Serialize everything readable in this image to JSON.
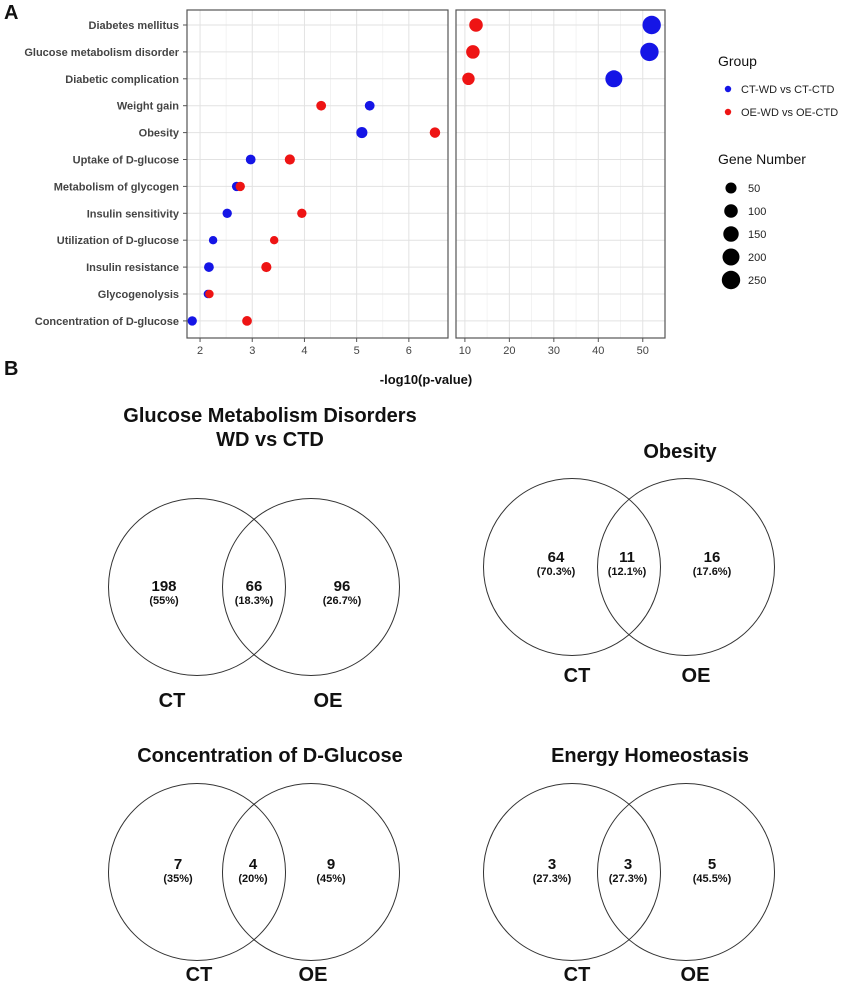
{
  "panel_labels": {
    "a": "A",
    "b": "B"
  },
  "chart_data": {
    "type": "scatter",
    "subtype": "dot-plot",
    "xlabel": "-log10(p-value)",
    "categories": [
      "Diabetes mellitus",
      "Glucose metabolism disorder",
      "Diabetic complication",
      "Weight gain",
      "Obesity",
      "Uptake of D-glucose",
      "Metabolism of glycogen",
      "Insulin sensitivity",
      "Utilization of D-glucose",
      "Insulin resistance",
      "Glycogenolysis",
      "Concentration of D-glucose"
    ],
    "facets": [
      {
        "xlim": [
          1.75,
          6.75
        ],
        "ticks": [
          "2",
          "3",
          "4",
          "5",
          "6"
        ],
        "tick_values": [
          2,
          3,
          4,
          5,
          6
        ]
      },
      {
        "xlim": [
          8,
          55
        ],
        "ticks": [
          "10",
          "20",
          "30",
          "40",
          "50"
        ],
        "tick_values": [
          10,
          20,
          30,
          40,
          50
        ]
      }
    ],
    "series": [
      {
        "name": "CT-WD vs CT-CTD",
        "color": "#1515e6",
        "points": [
          {
            "category": "Diabetes mellitus",
            "x": 52.0,
            "size": 250
          },
          {
            "category": "Glucose metabolism disorder",
            "x": 51.5,
            "size": 250
          },
          {
            "category": "Diabetic complication",
            "x": 43.5,
            "size": 200
          },
          {
            "category": "Weight gain",
            "x": 5.25,
            "size": 30
          },
          {
            "category": "Obesity",
            "x": 5.1,
            "size": 50
          },
          {
            "category": "Uptake of D-glucose",
            "x": 2.97,
            "size": 30
          },
          {
            "category": "Metabolism of glycogen",
            "x": 2.7,
            "size": 25
          },
          {
            "category": "Insulin sensitivity",
            "x": 2.52,
            "size": 25
          },
          {
            "category": "Utilization of D-glucose",
            "x": 2.25,
            "size": 15
          },
          {
            "category": "Insulin resistance",
            "x": 2.17,
            "size": 30
          },
          {
            "category": "Glycogenolysis",
            "x": 2.15,
            "size": 15
          },
          {
            "category": "Concentration of D-glucose",
            "x": 1.85,
            "size": 25
          }
        ]
      },
      {
        "name": "OE-WD vs OE-CTD",
        "color": "#ee1414",
        "points": [
          {
            "category": "Diabetes mellitus",
            "x": 12.5,
            "size": 100
          },
          {
            "category": "Glucose metabolism disorder",
            "x": 11.8,
            "size": 100
          },
          {
            "category": "Diabetic complication",
            "x": 10.8,
            "size": 75
          },
          {
            "category": "Weight gain",
            "x": 4.32,
            "size": 30
          },
          {
            "category": "Obesity",
            "x": 6.5,
            "size": 40
          },
          {
            "category": "Uptake of D-glucose",
            "x": 3.72,
            "size": 35
          },
          {
            "category": "Metabolism of glycogen",
            "x": 2.77,
            "size": 25
          },
          {
            "category": "Insulin sensitivity",
            "x": 3.95,
            "size": 25
          },
          {
            "category": "Utilization of D-glucose",
            "x": 3.42,
            "size": 15
          },
          {
            "category": "Insulin resistance",
            "x": 3.27,
            "size": 35
          },
          {
            "category": "Glycogenolysis",
            "x": 2.18,
            "size": 15
          },
          {
            "category": "Concentration of D-glucose",
            "x": 2.9,
            "size": 30
          }
        ]
      }
    ],
    "legend": {
      "group_title": "Group",
      "size_title": "Gene Number",
      "size_entries": [
        {
          "label": "50",
          "value": 50
        },
        {
          "label": "100",
          "value": 100
        },
        {
          "label": "150",
          "value": 150
        },
        {
          "label": "200",
          "value": 200
        },
        {
          "label": "250",
          "value": 250
        }
      ],
      "placement": "right"
    }
  },
  "venns": [
    {
      "title_line1": "Glucose Metabolism Disorders",
      "title_line2": "WD vs CTD",
      "left_label": "CT",
      "right_label": "OE",
      "left_only": {
        "count": "198",
        "pct": "(55%)"
      },
      "overlap": {
        "count": "66",
        "pct": "(18.3%)"
      },
      "right_only": {
        "count": "96",
        "pct": "(26.7%)"
      }
    },
    {
      "title_line1": "Obesity",
      "title_line2": "",
      "left_label": "CT",
      "right_label": "OE",
      "left_only": {
        "count": "64",
        "pct": "(70.3%)"
      },
      "overlap": {
        "count": "11",
        "pct": "(12.1%)"
      },
      "right_only": {
        "count": "16",
        "pct": "(17.6%)"
      }
    },
    {
      "title_line1": "Concentration of D-Glucose",
      "title_line2": "",
      "left_label": "CT",
      "right_label": "OE",
      "left_only": {
        "count": "7",
        "pct": "(35%)"
      },
      "overlap": {
        "count": "4",
        "pct": "(20%)"
      },
      "right_only": {
        "count": "9",
        "pct": "(45%)"
      }
    },
    {
      "title_line1": "Energy Homeostasis",
      "title_line2": "",
      "left_label": "CT",
      "right_label": "OE",
      "left_only": {
        "count": "3",
        "pct": "(27.3%)"
      },
      "overlap": {
        "count": "3",
        "pct": "(27.3%)"
      },
      "right_only": {
        "count": "5",
        "pct": "(45.5%)"
      }
    }
  ]
}
